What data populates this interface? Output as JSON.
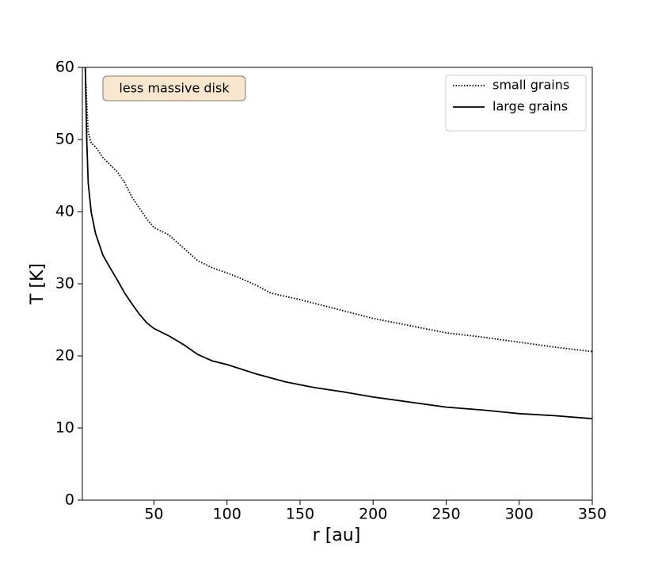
{
  "chart_data": {
    "type": "line",
    "x_label": "r [au]",
    "y_label": "T [K]",
    "annotation": "less massive disk",
    "xlim": [
      1,
      350
    ],
    "ylim": [
      0,
      60
    ],
    "xticks": [
      50,
      100,
      150,
      200,
      250,
      300,
      350
    ],
    "yticks": [
      0,
      10,
      20,
      30,
      40,
      50,
      60
    ],
    "legend": "upper right",
    "series": [
      {
        "name": "small grains",
        "color": "#000000",
        "linestyle": "dotted",
        "x": [
          3,
          4,
          5,
          7,
          10,
          15,
          20,
          25,
          30,
          35,
          40,
          45,
          50,
          60,
          70,
          80,
          90,
          100,
          110,
          120,
          130,
          150,
          175,
          200,
          225,
          250,
          275,
          300,
          325,
          350
        ],
        "values": [
          60,
          55,
          51,
          49.5,
          49,
          47.5,
          46.5,
          45.5,
          44,
          42,
          40.5,
          39,
          37.8,
          36.8,
          35,
          33.2,
          32.2,
          31.5,
          30.7,
          29.8,
          28.7,
          27.8,
          26.5,
          25.2,
          24.2,
          23.2,
          22.6,
          21.9,
          21.2,
          20.6
        ]
      },
      {
        "name": "large grains",
        "color": "#000000",
        "linestyle": "solid",
        "x": [
          3,
          4,
          5,
          7,
          10,
          15,
          20,
          25,
          30,
          35,
          40,
          45,
          50,
          60,
          70,
          80,
          90,
          100,
          120,
          140,
          160,
          180,
          200,
          225,
          250,
          275,
          300,
          325,
          350
        ],
        "values": [
          60,
          50,
          44,
          40,
          37,
          34,
          32.2,
          30.5,
          28.7,
          27.2,
          25.8,
          24.6,
          23.8,
          22.8,
          21.6,
          20.2,
          19.3,
          18.8,
          17.5,
          16.4,
          15.6,
          15,
          14.3,
          13.6,
          12.9,
          12.5,
          12,
          11.7,
          11.3
        ]
      }
    ]
  }
}
